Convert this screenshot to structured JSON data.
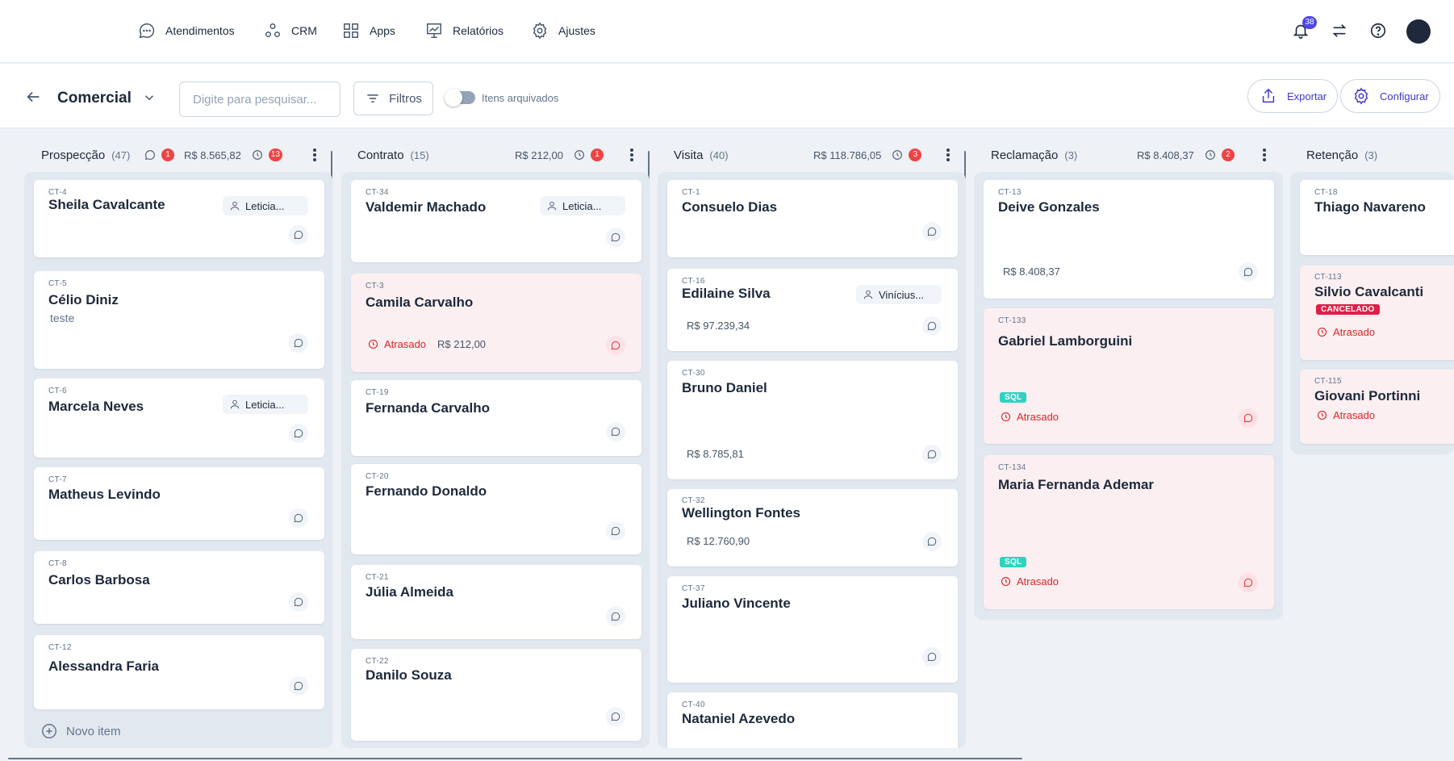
{
  "nav": {
    "items": [
      {
        "label": "Atendimentos",
        "icon": "chat-icon"
      },
      {
        "label": "CRM",
        "icon": "crm-nodes-icon"
      },
      {
        "label": "Apps",
        "icon": "apps-grid-icon"
      },
      {
        "label": "Relatórios",
        "icon": "report-chart-icon"
      },
      {
        "label": "Ajustes",
        "icon": "gear-icon"
      }
    ],
    "notification_count": "38"
  },
  "toolbar": {
    "title": "Comercial",
    "search_placeholder": "Digite para pesquisar...",
    "filters_label": "Filtros",
    "archived_label": "Itens arquivados",
    "archived_enabled": false,
    "export_label": "Exportar",
    "configure_label": "Configurar"
  },
  "columns": [
    {
      "title": "Prospecção",
      "count": "(47)",
      "chat_badge": "1",
      "total": "R$ 8.565,82",
      "late_badge": "13",
      "new_item_label": "Novo item",
      "cards": [
        {
          "id": "CT-4",
          "name": "Sheila Cavalcante",
          "assignee": "Leticia..."
        },
        {
          "id": "CT-5",
          "name": "Célio Diniz",
          "desc": "teste"
        },
        {
          "id": "CT-6",
          "name": "Marcela Neves",
          "assignee": "Leticia..."
        },
        {
          "id": "CT-7",
          "name": "Matheus Levindo"
        },
        {
          "id": "CT-8",
          "name": "Carlos Barbosa"
        },
        {
          "id": "CT-12",
          "name": "Alessandra Faria"
        }
      ]
    },
    {
      "title": "Contrato",
      "count": "(15)",
      "total": "R$ 212,00",
      "late_badge": "1",
      "cards": [
        {
          "id": "CT-34",
          "name": "Valdemir Machado",
          "assignee": "Leticia..."
        },
        {
          "id": "CT-3",
          "name": "Camila Carvalho",
          "late": "Atrasado",
          "value": "R$ 212,00"
        },
        {
          "id": "CT-19",
          "name": "Fernanda Carvalho"
        },
        {
          "id": "CT-20",
          "name": "Fernando Donaldo"
        },
        {
          "id": "CT-21",
          "name": "Júlia Almeida"
        },
        {
          "id": "CT-22",
          "name": "Danilo Souza"
        }
      ]
    },
    {
      "title": "Visita",
      "count": "(40)",
      "total": "R$ 118.786,05",
      "late_badge": "3",
      "cards": [
        {
          "id": "CT-1",
          "name": "Consuelo Dias"
        },
        {
          "id": "CT-16",
          "name": "Edilaine Silva",
          "assignee": "Vinícius...",
          "value": "R$ 97.239,34"
        },
        {
          "id": "CT-30",
          "name": "Bruno Daniel",
          "value": "R$ 8.785,81"
        },
        {
          "id": "CT-32",
          "name": "Wellington Fontes",
          "value": "R$ 12.760,90"
        },
        {
          "id": "CT-37",
          "name": "Juliano Vincente"
        },
        {
          "id": "CT-40",
          "name": "Nataniel Azevedo"
        }
      ]
    },
    {
      "title": "Reclamação",
      "count": "(3)",
      "total": "R$ 8.408,37",
      "late_badge": "2",
      "cards": [
        {
          "id": "CT-13",
          "name": "Deive Gonzales",
          "value": "R$ 8.408,37"
        },
        {
          "id": "CT-133",
          "name": "Gabriel Lamborguini",
          "tag": "SQL",
          "late": "Atrasado"
        },
        {
          "id": "CT-134",
          "name": "Maria Fernanda Ademar",
          "tag": "SQL",
          "late": "Atrasado"
        }
      ]
    },
    {
      "title": "Retenção",
      "count": "(3)",
      "cards": [
        {
          "id": "CT-18",
          "name": "Thiago Navareno"
        },
        {
          "id": "CT-113",
          "name": "Silvio Cavalcanti",
          "tag": "CANCELADO",
          "late": "Atrasado"
        },
        {
          "id": "CT-115",
          "name": "Giovani Portinni",
          "late": "Atrasado"
        }
      ]
    }
  ],
  "colors": {
    "accent": "#4338ca",
    "late_red": "#dc2626",
    "sql_tag": "#2dd4bf",
    "cancel_tag": "#e11d48",
    "late_card_bg": "#fbeff1"
  }
}
